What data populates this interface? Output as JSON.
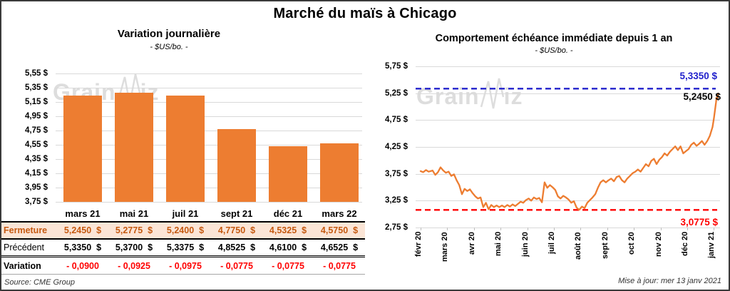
{
  "page": {
    "title": "Marché du maïs à Chicago",
    "source_note": "Source: CME Group",
    "update_note": "Mise à jour: mer 13 janv 2021",
    "watermark": {
      "part1": "Grain",
      "part2": "iz"
    }
  },
  "colors": {
    "bar_orange": "#ED7D31",
    "line_orange": "#ED7D31",
    "max_line_blue": "#2222CC",
    "min_line_red": "#FF0000",
    "variation_red": "#FF0000",
    "fermeture_bg": "#FBE5D6",
    "fermeture_text": "#C55A11",
    "gridline_gray": "#D9D9D9"
  },
  "table": {
    "columns": [
      "mars 21",
      "mai 21",
      "juil 21",
      "sept 21",
      "déc 21",
      "mars 22"
    ],
    "rows": [
      {
        "label": "Fermeture",
        "values": [
          "5,2450  $",
          "5,2775  $",
          "5,2400  $",
          "4,7750  $",
          "4,5325  $",
          "4,5750  $"
        ]
      },
      {
        "label": "Précédent",
        "values": [
          "5,3350  $",
          "5,3700  $",
          "5,3375  $",
          "4,8525  $",
          "4,6100  $",
          "4,6525  $"
        ]
      },
      {
        "label": "Variation",
        "values": [
          "- 0,0900",
          "- 0,0925",
          "- 0,0975",
          "- 0,0775",
          "- 0,0775",
          "- 0,0775"
        ]
      }
    ]
  },
  "chart_data": [
    {
      "type": "bar",
      "title": "Variation journalière",
      "subtitle": "- $US/bo. -",
      "categories": [
        "mars 21",
        "mai 21",
        "juil 21",
        "sept 21",
        "déc 21",
        "mars 22"
      ],
      "values": [
        5.245,
        5.2775,
        5.24,
        4.775,
        4.5325,
        4.575
      ],
      "ylabel": "$US/bo.",
      "ylim": [
        3.75,
        5.55
      ],
      "ytick_step": 0.2,
      "y_tick_labels": [
        "5,55 $",
        "5,35 $",
        "5,15 $",
        "4,95 $",
        "4,75 $",
        "4,55 $",
        "4,35 $",
        "4,15 $",
        "3,95 $",
        "3,75 $"
      ],
      "grid": true,
      "legend": "none"
    },
    {
      "type": "line",
      "title": "Comportement échéance immédiate depuis 1 an",
      "subtitle": "- $US/bo. -",
      "ylabel": "$US/bo.",
      "ylim": [
        2.75,
        5.75
      ],
      "ytick_step": 0.5,
      "y_tick_labels": [
        "5,75 $",
        "5,25 $",
        "4,75 $",
        "4,25 $",
        "3,75 $",
        "3,25 $",
        "2,75 $"
      ],
      "x_tick_labels": [
        "févr 20",
        "mars 20",
        "avr 20",
        "mai 20",
        "juin 20",
        "juil 20",
        "août 20",
        "sept 20",
        "oct 20",
        "nov 20",
        "déc 20",
        "janv 21"
      ],
      "grid": true,
      "legend": "none",
      "last_value": 5.245,
      "last_point_label": "5,2450 $",
      "reference_lines": [
        {
          "label": "5,3350 $",
          "value": 5.335,
          "color": "#2222CC",
          "style": "dashed",
          "meaning": "max"
        },
        {
          "label": "3,0775 $",
          "value": 3.0775,
          "color": "#FF0000",
          "style": "dashed",
          "meaning": "min"
        }
      ],
      "points": [
        [
          0.0,
          3.8
        ],
        [
          0.1,
          3.78
        ],
        [
          0.2,
          3.82
        ],
        [
          0.3,
          3.79
        ],
        [
          0.45,
          3.81
        ],
        [
          0.55,
          3.73
        ],
        [
          0.65,
          3.78
        ],
        [
          0.75,
          3.87
        ],
        [
          0.85,
          3.81
        ],
        [
          0.95,
          3.77
        ],
        [
          1.05,
          3.79
        ],
        [
          1.15,
          3.71
        ],
        [
          1.25,
          3.74
        ],
        [
          1.35,
          3.63
        ],
        [
          1.45,
          3.54
        ],
        [
          1.55,
          3.37
        ],
        [
          1.65,
          3.47
        ],
        [
          1.75,
          3.43
        ],
        [
          1.85,
          3.46
        ],
        [
          1.95,
          3.39
        ],
        [
          2.05,
          3.33
        ],
        [
          2.15,
          3.29
        ],
        [
          2.25,
          3.31
        ],
        [
          2.35,
          3.13
        ],
        [
          2.45,
          3.21
        ],
        [
          2.55,
          3.09
        ],
        [
          2.65,
          3.17
        ],
        [
          2.75,
          3.13
        ],
        [
          2.85,
          3.16
        ],
        [
          2.95,
          3.13
        ],
        [
          3.05,
          3.16
        ],
        [
          3.15,
          3.13
        ],
        [
          3.25,
          3.17
        ],
        [
          3.35,
          3.14
        ],
        [
          3.45,
          3.18
        ],
        [
          3.55,
          3.15
        ],
        [
          3.65,
          3.19
        ],
        [
          3.75,
          3.23
        ],
        [
          3.85,
          3.21
        ],
        [
          3.95,
          3.26
        ],
        [
          4.05,
          3.29
        ],
        [
          4.15,
          3.25
        ],
        [
          4.25,
          3.31
        ],
        [
          4.35,
          3.28
        ],
        [
          4.45,
          3.3
        ],
        [
          4.55,
          3.22
        ],
        [
          4.65,
          3.59
        ],
        [
          4.75,
          3.49
        ],
        [
          4.85,
          3.54
        ],
        [
          4.95,
          3.5
        ],
        [
          5.05,
          3.45
        ],
        [
          5.15,
          3.33
        ],
        [
          5.25,
          3.29
        ],
        [
          5.35,
          3.34
        ],
        [
          5.45,
          3.31
        ],
        [
          5.55,
          3.27
        ],
        [
          5.65,
          3.21
        ],
        [
          5.75,
          3.24
        ],
        [
          5.85,
          3.12
        ],
        [
          5.95,
          3.08
        ],
        [
          6.05,
          3.14
        ],
        [
          6.15,
          3.11
        ],
        [
          6.25,
          3.21
        ],
        [
          6.35,
          3.26
        ],
        [
          6.45,
          3.31
        ],
        [
          6.55,
          3.37
        ],
        [
          6.65,
          3.49
        ],
        [
          6.75,
          3.59
        ],
        [
          6.85,
          3.63
        ],
        [
          6.95,
          3.59
        ],
        [
          7.05,
          3.63
        ],
        [
          7.15,
          3.66
        ],
        [
          7.25,
          3.61
        ],
        [
          7.35,
          3.69
        ],
        [
          7.45,
          3.71
        ],
        [
          7.55,
          3.63
        ],
        [
          7.65,
          3.59
        ],
        [
          7.75,
          3.66
        ],
        [
          7.85,
          3.71
        ],
        [
          7.95,
          3.76
        ],
        [
          8.05,
          3.79
        ],
        [
          8.15,
          3.83
        ],
        [
          8.25,
          3.79
        ],
        [
          8.35,
          3.86
        ],
        [
          8.45,
          3.93
        ],
        [
          8.55,
          3.89
        ],
        [
          8.65,
          3.99
        ],
        [
          8.75,
          4.03
        ],
        [
          8.85,
          3.93
        ],
        [
          8.95,
          4.01
        ],
        [
          9.05,
          4.06
        ],
        [
          9.15,
          4.13
        ],
        [
          9.25,
          4.09
        ],
        [
          9.35,
          4.16
        ],
        [
          9.45,
          4.21
        ],
        [
          9.55,
          4.26
        ],
        [
          9.65,
          4.19
        ],
        [
          9.75,
          4.26
        ],
        [
          9.85,
          4.13
        ],
        [
          9.95,
          4.17
        ],
        [
          10.05,
          4.21
        ],
        [
          10.15,
          4.29
        ],
        [
          10.25,
          4.33
        ],
        [
          10.35,
          4.27
        ],
        [
          10.45,
          4.31
        ],
        [
          10.55,
          4.36
        ],
        [
          10.65,
          4.29
        ],
        [
          10.75,
          4.36
        ],
        [
          10.85,
          4.46
        ],
        [
          10.95,
          4.62
        ],
        [
          11.0,
          4.78
        ],
        [
          11.05,
          4.97
        ],
        [
          11.08,
          5.08
        ],
        [
          11.1,
          5.17
        ],
        [
          11.13,
          5.14
        ],
        [
          11.16,
          5.245
        ]
      ]
    }
  ]
}
